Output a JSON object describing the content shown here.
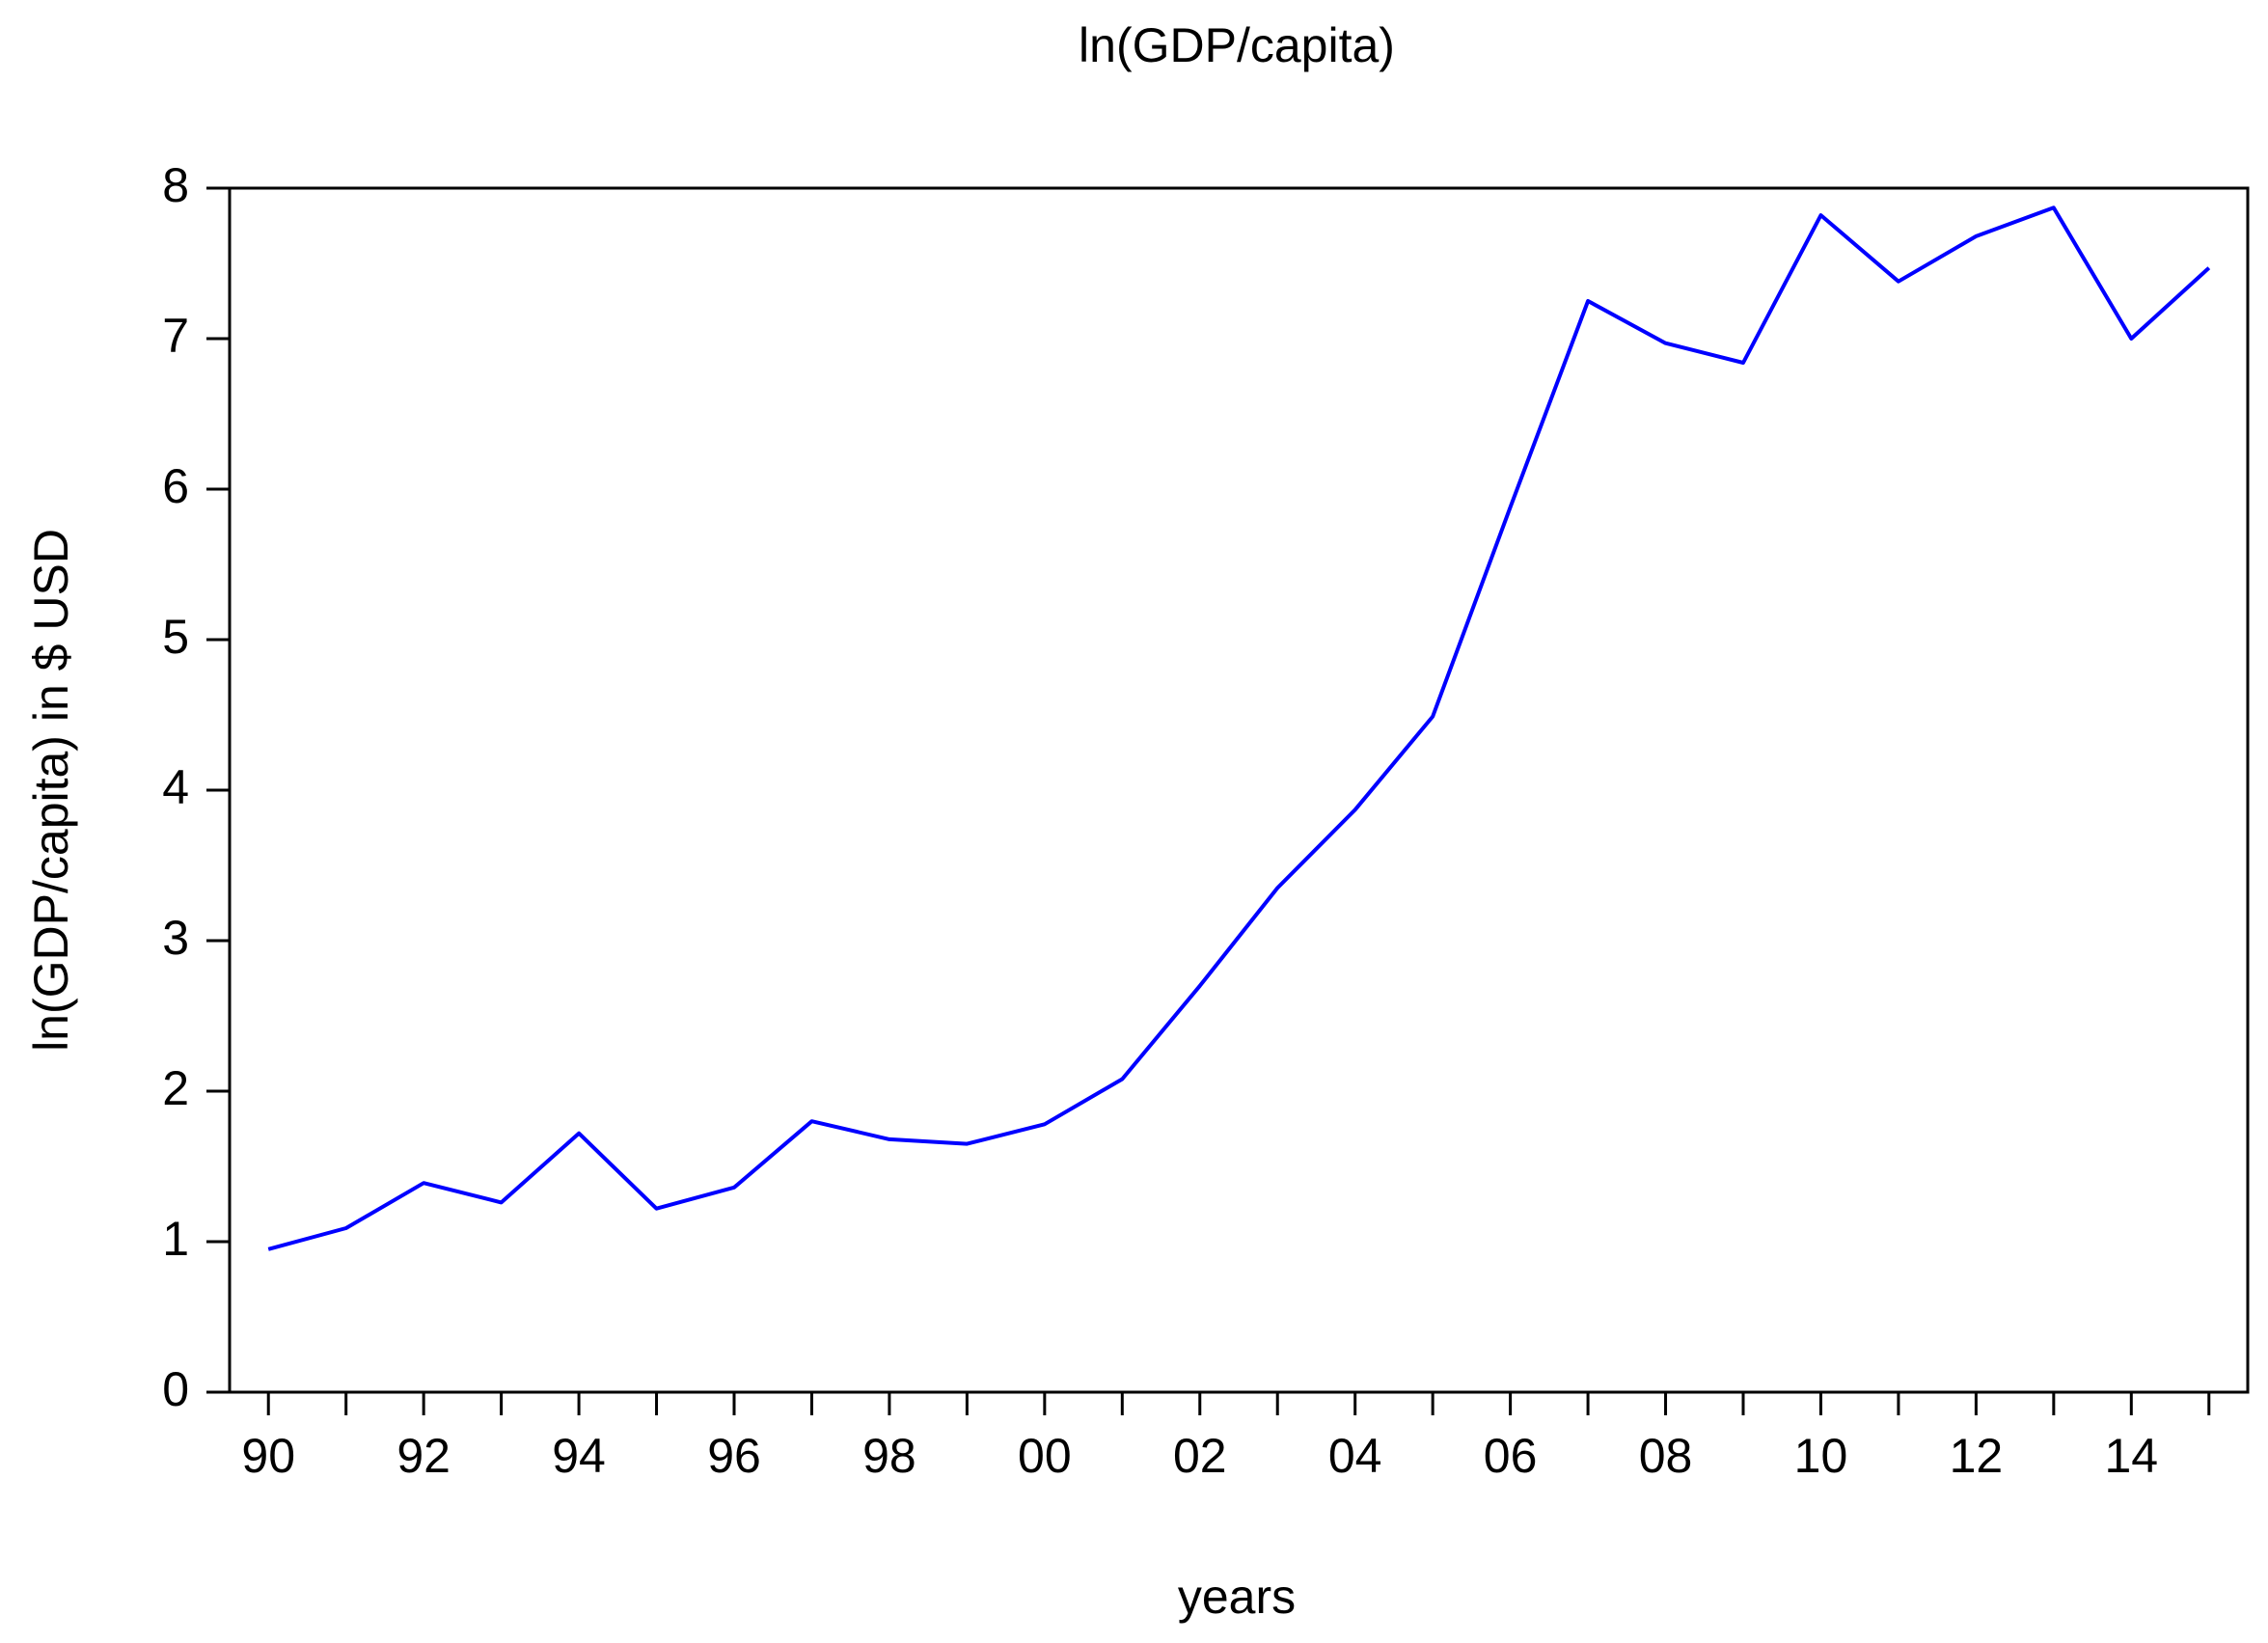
{
  "chart_data": {
    "type": "line",
    "title": "ln(GDP/capita)",
    "xlabel": "years",
    "ylabel": "ln(GDP/capita) in $ USD",
    "x": [
      1990,
      1991,
      1992,
      1993,
      1994,
      1995,
      1996,
      1997,
      1998,
      1999,
      2000,
      2001,
      2002,
      2003,
      2004,
      2005,
      2006,
      2007,
      2008,
      2009,
      2010,
      2011,
      2012,
      2013,
      2014,
      2015
    ],
    "series": [
      {
        "values": [
          0.95,
          1.09,
          1.39,
          1.26,
          1.72,
          1.22,
          1.36,
          1.8,
          1.68,
          1.65,
          1.78,
          2.08,
          2.7,
          3.35,
          3.87,
          4.49,
          5.88,
          7.25,
          6.97,
          6.84,
          7.82,
          7.38,
          7.68,
          7.87,
          7.0,
          7.47
        ],
        "color": "#0000ff"
      }
    ],
    "xticks": [
      "90",
      "92",
      "94",
      "96",
      "98",
      "00",
      "02",
      "04",
      "06",
      "08",
      "10",
      "12",
      "14"
    ],
    "yticks": [
      "0",
      "1",
      "2",
      "3",
      "4",
      "5",
      "6",
      "7",
      "8"
    ],
    "xlim": [
      1989.5,
      2015.5
    ],
    "ylim": [
      0,
      8
    ],
    "grid": false,
    "legend": "none"
  }
}
